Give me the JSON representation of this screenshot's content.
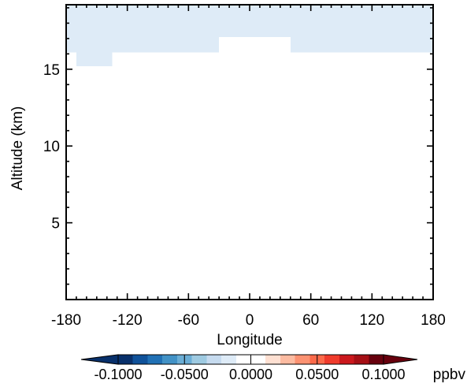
{
  "chart_data": {
    "type": "heatmap",
    "title": "",
    "xlabel": "Longitude",
    "ylabel": "Altitude (km)",
    "xlim": [
      -180,
      180
    ],
    "ylim": [
      0,
      19.2
    ],
    "x_ticks": [
      -180,
      -120,
      -60,
      0,
      60,
      120,
      180
    ],
    "x_tick_labels": [
      "-180",
      "-120",
      "-60",
      "0",
      "60",
      "120",
      "180"
    ],
    "y_ticks": [
      5,
      10,
      15
    ],
    "y_tick_labels": [
      "5",
      "10",
      "15"
    ],
    "colorbar": {
      "unit": "ppbv",
      "tick_labels": [
        "-0.1000",
        "-0.0500",
        "0.0000",
        "0.0500",
        "0.1000"
      ],
      "tick_values": [
        -0.1,
        -0.05,
        0.0,
        0.05,
        0.1
      ],
      "colors": [
        "#08306b",
        "#10529a",
        "#2171b5",
        "#4292c6",
        "#6baed6",
        "#9ecae1",
        "#c6dbef",
        "#deebf7",
        "#ffffff",
        "#ffffff",
        "#fee0d2",
        "#fcbba1",
        "#fc9272",
        "#fb6a4a",
        "#ef3b2c",
        "#cb181d",
        "#a50f15",
        "#67000d"
      ],
      "under_color": "#08306b",
      "over_color": "#67000d"
    },
    "cells": [
      {
        "lon": [
          -180,
          -160
        ],
        "alt": [
          18.1,
          19.2
        ],
        "value": -0.022
      },
      {
        "lon": [
          -160,
          -40
        ],
        "alt": [
          18.1,
          19.2
        ],
        "value": -0.018
      },
      {
        "lon": [
          -40,
          -5
        ],
        "alt": [
          18.1,
          19.2
        ],
        "value": -0.022
      },
      {
        "lon": [
          -5,
          5
        ],
        "alt": [
          18.1,
          19.2
        ],
        "value": -0.018
      },
      {
        "lon": [
          5,
          45
        ],
        "alt": [
          18.1,
          19.2
        ],
        "value": -0.022
      },
      {
        "lon": [
          45,
          100
        ],
        "alt": [
          18.1,
          19.2
        ],
        "value": -0.022
      },
      {
        "lon": [
          100,
          140
        ],
        "alt": [
          18.1,
          19.2
        ],
        "value": -0.018
      },
      {
        "lon": [
          140,
          180
        ],
        "alt": [
          18.1,
          19.2
        ],
        "value": -0.022
      },
      {
        "lon": [
          -180,
          -30
        ],
        "alt": [
          17.1,
          18.1
        ],
        "value": -0.022
      },
      {
        "lon": [
          -30,
          30
        ],
        "alt": [
          17.1,
          18.1
        ],
        "value": -0.022
      },
      {
        "lon": [
          30,
          180
        ],
        "alt": [
          17.1,
          18.1
        ],
        "value": -0.022
      },
      {
        "lon": [
          -180,
          -30
        ],
        "alt": [
          16.1,
          17.1
        ],
        "value": -0.016
      },
      {
        "lon": [
          -30,
          40
        ],
        "alt": [
          16.1,
          17.1
        ],
        "value": -0.01
      },
      {
        "lon": [
          40,
          180
        ],
        "alt": [
          16.1,
          17.1
        ],
        "value": -0.016
      },
      {
        "lon": [
          -180,
          -170
        ],
        "alt": [
          15.2,
          16.1
        ],
        "value": -0.01
      },
      {
        "lon": [
          -170,
          -135
        ],
        "alt": [
          15.2,
          16.1
        ],
        "value": -0.016
      },
      {
        "lon": [
          -135,
          -5
        ],
        "alt": [
          15.2,
          16.1
        ],
        "value": -0.01
      },
      {
        "lon": [
          45,
          120
        ],
        "alt": [
          15.2,
          16.1
        ],
        "value": -0.01
      },
      {
        "lon": [
          125,
          180
        ],
        "alt": [
          15.2,
          16.1
        ],
        "value": -0.01
      },
      {
        "lon": [
          25,
          30
        ],
        "alt": [
          0.7,
          1.8
        ],
        "value": -0.01
      }
    ]
  }
}
